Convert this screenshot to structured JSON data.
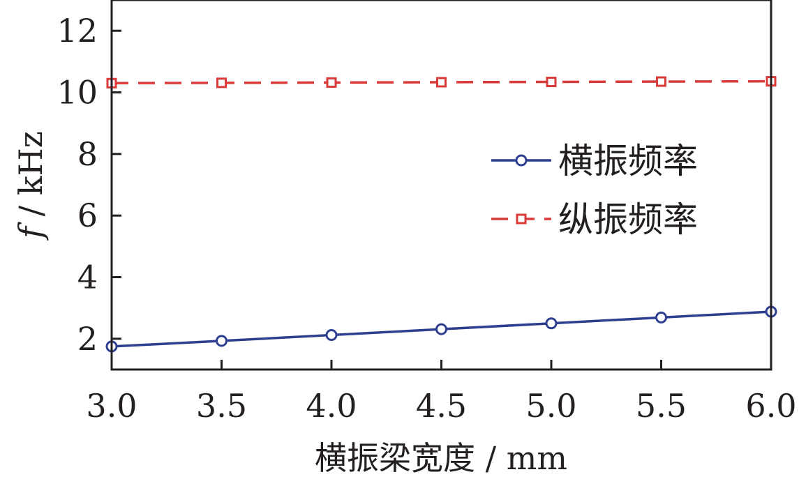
{
  "chart_data": {
    "type": "line",
    "xlabel": "横振梁宽度 / mm",
    "ylabel_symbol": "f",
    "ylabel_unit": " / kHz",
    "xlim": [
      3.0,
      6.0
    ],
    "ylim": [
      1.0,
      13.0
    ],
    "x_ticks": [
      "3.0",
      "3.5",
      "4.0",
      "4.5",
      "5.0",
      "5.5",
      "6.0"
    ],
    "y_ticks": [
      "2",
      "4",
      "6",
      "8",
      "10",
      "12"
    ],
    "grid": false,
    "legend_position": "right",
    "x": [
      3.0,
      3.5,
      4.0,
      4.5,
      5.0,
      5.5,
      6.0
    ],
    "series": [
      {
        "name": "横振频率",
        "values": [
          1.75,
          1.93,
          2.12,
          2.31,
          2.5,
          2.69,
          2.88
        ],
        "color": "#2e3f8f",
        "line_style": "solid",
        "marker": "circle"
      },
      {
        "name": "纵振频率",
        "values": [
          10.3,
          10.31,
          10.32,
          10.33,
          10.34,
          10.35,
          10.36
        ],
        "color": "#d93a3a",
        "line_style": "dashed",
        "marker": "square"
      }
    ]
  }
}
